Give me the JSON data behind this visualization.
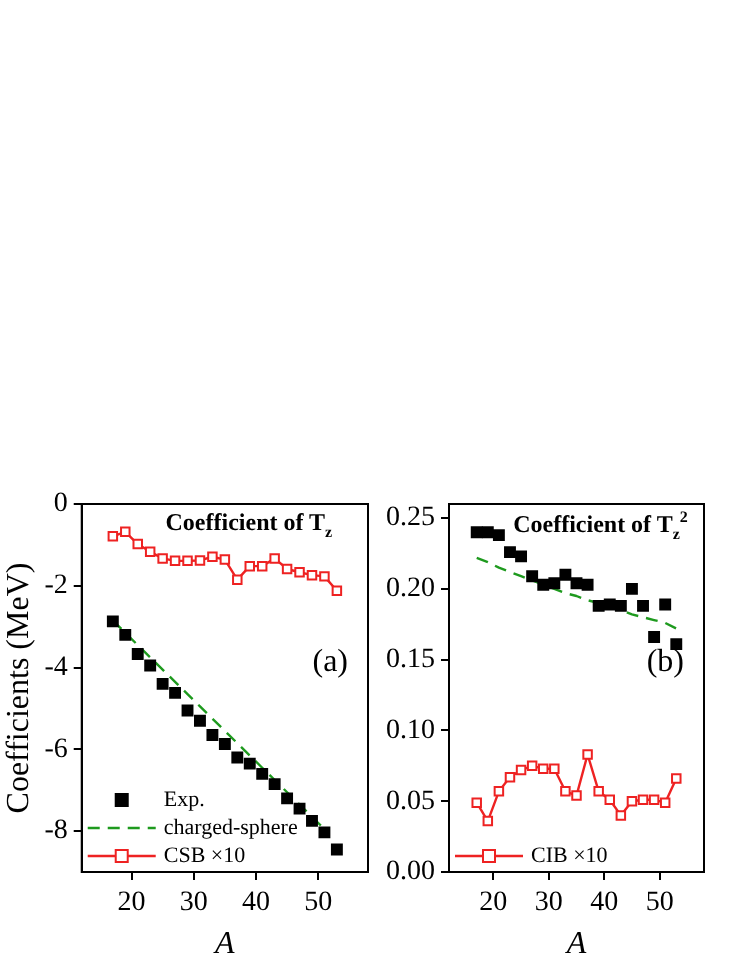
{
  "chart_data": [
    {
      "type": "scatter",
      "title": "Coefficient of T$_{z}$",
      "xlabel": "A",
      "ylabel": "Coefficients (MeV)",
      "annotations": [
        "(a)"
      ],
      "x": [
        17,
        19,
        21,
        23,
        25,
        27,
        29,
        31,
        33,
        35,
        37,
        39,
        41,
        43,
        45,
        47,
        49,
        51,
        53
      ],
      "xlim": [
        12,
        58
      ],
      "xticks": [
        20,
        30,
        40,
        50
      ],
      "ylim": [
        -9,
        0
      ],
      "yticks": [
        -8,
        -6,
        -4,
        -2,
        0
      ],
      "grid": false,
      "legend": "bottom left",
      "series": [
        {
          "name": "Exp.",
          "marker": "square",
          "color": "#000000",
          "values": [
            -2.87,
            -3.2,
            -3.67,
            -3.95,
            -4.4,
            -4.62,
            -5.05,
            -5.3,
            -5.65,
            -5.87,
            -6.2,
            -6.35,
            -6.6,
            -6.85,
            -7.2,
            -7.45,
            -7.75,
            -8.03,
            -8.45
          ]
        },
        {
          "name": "charged-sphere",
          "type": "line",
          "marker": "none",
          "line_style": "dashed",
          "color": "#1e9a1e",
          "x": [
            17,
            19,
            21,
            23,
            25,
            27,
            29,
            31,
            33,
            35,
            37,
            39,
            41,
            43,
            45,
            47,
            49,
            51
          ],
          "values": [
            -2.85,
            -3.15,
            -3.45,
            -3.75,
            -4.05,
            -4.35,
            -4.65,
            -4.95,
            -5.25,
            -5.55,
            -5.85,
            -6.15,
            -6.45,
            -6.75,
            -7.05,
            -7.35,
            -7.65,
            -7.95
          ]
        },
        {
          "name": "CSB ×10",
          "type": "line",
          "marker": "square",
          "line_style": "solid",
          "color": "#ee2222",
          "values": [
            -0.79,
            -0.68,
            -0.98,
            -1.17,
            -1.33,
            -1.39,
            -1.39,
            -1.38,
            -1.29,
            -1.36,
            -1.85,
            -1.52,
            -1.52,
            -1.33,
            -1.59,
            -1.67,
            -1.74,
            -1.77,
            -2.12
          ]
        }
      ]
    },
    {
      "type": "scatter",
      "title": "Coefficient of T$_{z}$$^{2}$",
      "xlabel": "A",
      "annotations": [
        "(b)"
      ],
      "x": [
        17,
        19,
        21,
        23,
        25,
        27,
        29,
        31,
        33,
        35,
        37,
        39,
        41,
        43,
        45,
        47,
        49,
        51,
        53
      ],
      "xlim": [
        12,
        58
      ],
      "xticks": [
        20,
        30,
        40,
        50
      ],
      "ylim": [
        0,
        0.26
      ],
      "yticks": [
        {
          "value": 0,
          "label": "0.00"
        },
        {
          "value": 0.05,
          "label": "0.05"
        },
        {
          "value": 0.1,
          "label": "0.10"
        },
        {
          "value": 0.15,
          "label": "0.15"
        },
        {
          "value": 0.2,
          "label": "0.20"
        },
        {
          "value": 0.25,
          "label": "0.25"
        }
      ],
      "grid": false,
      "legend": "bottom left",
      "series": [
        {
          "marker": "square",
          "color": "#000000",
          "values": [
            0.24,
            0.24,
            0.238,
            0.226,
            0.223,
            0.209,
            0.203,
            0.204,
            0.21,
            0.204,
            0.203,
            0.188,
            0.189,
            0.188,
            0.2,
            0.188,
            0.166,
            0.189,
            0.161
          ]
        },
        {
          "type": "line",
          "marker": "none",
          "line_style": "dashed",
          "color": "#1e9a1e",
          "values": [
            0.222,
            0.219,
            0.215,
            0.212,
            0.209,
            0.206,
            0.203,
            0.2,
            0.197,
            0.195,
            0.192,
            0.19,
            0.187,
            0.185,
            0.182,
            0.18,
            0.178,
            0.176,
            0.172
          ]
        },
        {
          "name": "CIB ×10",
          "type": "line",
          "marker": "square",
          "line_style": "solid",
          "color": "#ee2222",
          "values": [
            0.049,
            0.036,
            0.057,
            0.067,
            0.072,
            0.075,
            0.073,
            0.073,
            0.057,
            0.054,
            0.083,
            0.057,
            0.051,
            0.04,
            0.05,
            0.051,
            0.051,
            0.049,
            0.066
          ]
        }
      ]
    }
  ]
}
